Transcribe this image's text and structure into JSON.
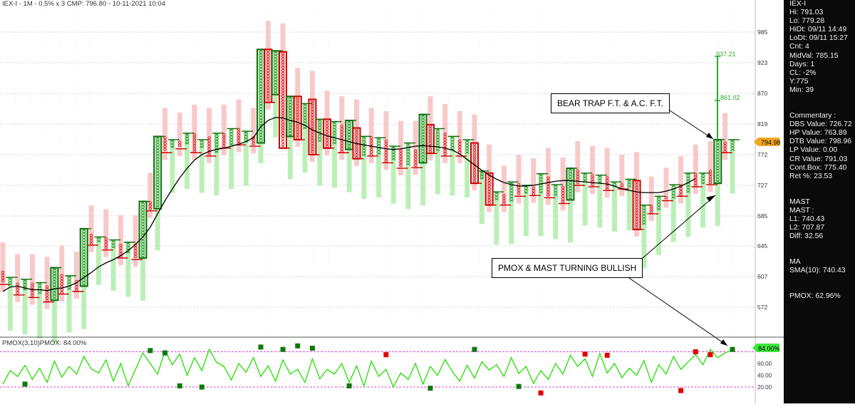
{
  "header": {
    "title": "IEX-I - 1M - 0.5% x 3 CMP: 796.80 - 10-11-2021 10:04"
  },
  "price_axis": {
    "ticks": [
      "985",
      "923",
      "870",
      "819",
      "772",
      "727",
      "685",
      "645",
      "607",
      "572"
    ],
    "current_price": "794.98"
  },
  "pmox_axis": {
    "ticks": [
      "60.00",
      "40.00",
      "20.00"
    ],
    "current": "84.00%"
  },
  "pmox_title": "PMOX(3,10)PMOX: 84.00%",
  "annotations": {
    "upper_target": "937.21",
    "lower_target": "861.02",
    "callout_1": "BEAR TRAP F.T. & A.C. F.T.",
    "callout_2": "PMOX & MAST TURNING BULLISH"
  },
  "side_panel": {
    "block1": [
      "IEX-I",
      "Hi: 791.03",
      "Lo: 779.28",
      "HiDt: 09/11 14:49",
      "LoDt: 09/11 15:27",
      "Cnt: 4",
      "MidVal: 785.15",
      "Days: 1",
      "CL: -2%",
      "Y:775",
      "Min: 39"
    ],
    "block2": [
      "Commentary :",
      "DBS Value:  726.72",
      "HP Value: 763.89",
      "DTB Value: 798.96",
      "LP Value: 0.00",
      "CR Value: 791.03",
      "Cont.Box: 775.40",
      "Ret %: 23.53"
    ],
    "block3": [
      "MAST",
      "MAST :",
      "L1: 740.43",
      "L2: 707.87",
      "Diff: 32.56"
    ],
    "block4": [
      "MA",
      "SMA(10): 740.43"
    ],
    "block5": [
      "PMOX: 62.96%"
    ]
  },
  "colors": {
    "up": "#1e8c1e",
    "down": "#e01010",
    "up_bar": "#b5edb0",
    "down_bar": "#f7c3c3",
    "pmox_line": "#22e000",
    "bg_panel": "#0a0a0a",
    "price_tag": "#f5a623"
  },
  "chart_data": {
    "type": "point-and-figure",
    "title": "IEX-I - 1M - 0.5% x 3 CMP: 796.80 - 10-11-2021 10:04",
    "y_ticks": [
      572,
      607,
      645,
      685,
      727,
      772,
      819,
      870,
      923,
      985
    ],
    "columns": [
      {
        "t": "O",
        "lo": 598,
        "hi": 614
      },
      {
        "t": "X",
        "lo": 594,
        "hi": 606
      },
      {
        "t": "O",
        "lo": 586,
        "hi": 600
      },
      {
        "t": "X",
        "lo": 590,
        "hi": 604
      },
      {
        "t": "O",
        "lo": 583,
        "hi": 600
      },
      {
        "t": "X",
        "lo": 585,
        "hi": 600
      },
      {
        "t": "O",
        "lo": 578,
        "hi": 597
      },
      {
        "t": "X",
        "lo": 580,
        "hi": 618
      },
      {
        "t": "O",
        "lo": 587,
        "hi": 610
      },
      {
        "t": "X",
        "lo": 592,
        "hi": 608
      },
      {
        "t": "O",
        "lo": 590,
        "hi": 603
      },
      {
        "t": "X",
        "lo": 596,
        "hi": 668
      },
      {
        "t": "O",
        "lo": 646,
        "hi": 661
      },
      {
        "t": "X",
        "lo": 650,
        "hi": 657
      },
      {
        "t": "O",
        "lo": 640,
        "hi": 656
      },
      {
        "t": "X",
        "lo": 642,
        "hi": 653
      },
      {
        "t": "O",
        "lo": 630,
        "hi": 648
      },
      {
        "t": "X",
        "lo": 635,
        "hi": 650
      },
      {
        "t": "O",
        "lo": 628,
        "hi": 648
      },
      {
        "t": "X",
        "lo": 630,
        "hi": 705
      },
      {
        "t": "O",
        "lo": 692,
        "hi": 705
      },
      {
        "t": "X",
        "lo": 695,
        "hi": 800
      },
      {
        "t": "O",
        "lo": 775,
        "hi": 800
      },
      {
        "t": "X",
        "lo": 779,
        "hi": 795
      },
      {
        "t": "O",
        "lo": 781,
        "hi": 793
      },
      {
        "t": "X",
        "lo": 785,
        "hi": 805
      },
      {
        "t": "O",
        "lo": 775,
        "hi": 805
      },
      {
        "t": "X",
        "lo": 779,
        "hi": 795
      },
      {
        "t": "O",
        "lo": 770,
        "hi": 800
      },
      {
        "t": "X",
        "lo": 775,
        "hi": 805
      },
      {
        "t": "O",
        "lo": 782,
        "hi": 805
      },
      {
        "t": "X",
        "lo": 785,
        "hi": 812
      },
      {
        "t": "O",
        "lo": 787,
        "hi": 813
      },
      {
        "t": "X",
        "lo": 790,
        "hi": 808
      },
      {
        "t": "O",
        "lo": 785,
        "hi": 800
      },
      {
        "t": "X",
        "lo": 790,
        "hi": 950
      },
      {
        "t": "O",
        "lo": 855,
        "hi": 950
      },
      {
        "t": "X",
        "lo": 868,
        "hi": 947
      },
      {
        "t": "O",
        "lo": 782,
        "hi": 945
      },
      {
        "t": "X",
        "lo": 800,
        "hi": 865
      },
      {
        "t": "O",
        "lo": 795,
        "hi": 865
      },
      {
        "t": "X",
        "lo": 810,
        "hi": 853
      },
      {
        "t": "O",
        "lo": 772,
        "hi": 860
      },
      {
        "t": "X",
        "lo": 790,
        "hi": 827
      },
      {
        "t": "O",
        "lo": 782,
        "hi": 827
      },
      {
        "t": "X",
        "lo": 787,
        "hi": 823
      },
      {
        "t": "O",
        "lo": 775,
        "hi": 818
      },
      {
        "t": "X",
        "lo": 780,
        "hi": 825
      },
      {
        "t": "O",
        "lo": 766,
        "hi": 813
      },
      {
        "t": "X",
        "lo": 770,
        "hi": 800
      },
      {
        "t": "O",
        "lo": 770,
        "hi": 800
      },
      {
        "t": "X",
        "lo": 772,
        "hi": 798
      },
      {
        "t": "O",
        "lo": 760,
        "hi": 795
      },
      {
        "t": "X",
        "lo": 763,
        "hi": 785
      },
      {
        "t": "O",
        "lo": 752,
        "hi": 780
      },
      {
        "t": "X",
        "lo": 755,
        "hi": 790
      },
      {
        "t": "O",
        "lo": 753,
        "hi": 780
      },
      {
        "t": "X",
        "lo": 760,
        "hi": 835
      },
      {
        "t": "O",
        "lo": 774,
        "hi": 818
      },
      {
        "t": "X",
        "lo": 777,
        "hi": 812
      },
      {
        "t": "O",
        "lo": 770,
        "hi": 806
      },
      {
        "t": "X",
        "lo": 775,
        "hi": 800
      },
      {
        "t": "O",
        "lo": 770,
        "hi": 795
      },
      {
        "t": "X",
        "lo": 772,
        "hi": 795
      },
      {
        "t": "O",
        "lo": 730,
        "hi": 790
      },
      {
        "t": "X",
        "lo": 733,
        "hi": 748
      },
      {
        "t": "O",
        "lo": 700,
        "hi": 745
      },
      {
        "t": "X",
        "lo": 704,
        "hi": 718
      },
      {
        "t": "O",
        "lo": 700,
        "hi": 715
      },
      {
        "t": "X",
        "lo": 705,
        "hi": 732
      },
      {
        "t": "O",
        "lo": 712,
        "hi": 730
      },
      {
        "t": "X",
        "lo": 716,
        "hi": 727
      },
      {
        "t": "O",
        "lo": 713,
        "hi": 725
      },
      {
        "t": "X",
        "lo": 716,
        "hi": 744
      },
      {
        "t": "O",
        "lo": 710,
        "hi": 740
      },
      {
        "t": "X",
        "lo": 712,
        "hi": 728
      },
      {
        "t": "O",
        "lo": 702,
        "hi": 726
      },
      {
        "t": "X",
        "lo": 707,
        "hi": 752
      },
      {
        "t": "O",
        "lo": 727,
        "hi": 750
      },
      {
        "t": "X",
        "lo": 731,
        "hi": 745
      },
      {
        "t": "O",
        "lo": 725,
        "hi": 743
      },
      {
        "t": "X",
        "lo": 728,
        "hi": 742
      },
      {
        "t": "O",
        "lo": 720,
        "hi": 740
      },
      {
        "t": "X",
        "lo": 722,
        "hi": 732
      },
      {
        "t": "O",
        "lo": 722,
        "hi": 730
      },
      {
        "t": "X",
        "lo": 724,
        "hi": 736
      },
      {
        "t": "O",
        "lo": 667,
        "hi": 734
      },
      {
        "t": "X",
        "lo": 672,
        "hi": 700
      },
      {
        "t": "O",
        "lo": 688,
        "hi": 700
      },
      {
        "t": "X",
        "lo": 690,
        "hi": 712
      },
      {
        "t": "O",
        "lo": 706,
        "hi": 712
      },
      {
        "t": "X",
        "lo": 708,
        "hi": 728
      },
      {
        "t": "O",
        "lo": 712,
        "hi": 728
      },
      {
        "t": "X",
        "lo": 715,
        "hi": 745
      },
      {
        "t": "O",
        "lo": 725,
        "hi": 745
      },
      {
        "t": "X",
        "lo": 728,
        "hi": 745
      },
      {
        "t": "O",
        "lo": 728,
        "hi": 750
      },
      {
        "t": "X",
        "lo": 730,
        "hi": 795
      },
      {
        "t": "O",
        "lo": 775,
        "hi": 792
      },
      {
        "t": "X",
        "lo": 778,
        "hi": 795
      }
    ],
    "sma10": [
      590,
      595,
      596,
      594,
      592,
      592,
      591,
      593,
      594,
      596,
      600,
      606,
      612,
      619,
      624,
      628,
      633,
      639,
      647,
      657,
      670,
      688,
      706,
      722,
      738,
      752,
      764,
      772,
      777,
      780,
      782,
      785,
      788,
      792,
      798,
      815,
      825,
      830,
      829,
      825,
      822,
      817,
      810,
      805,
      801,
      798,
      795,
      792,
      789,
      787,
      785,
      783,
      781,
      780,
      781,
      783,
      785,
      786,
      785,
      784,
      782,
      779,
      773,
      765,
      757,
      749,
      742,
      736,
      731,
      728,
      726,
      726,
      727,
      729,
      731,
      733,
      734,
      734,
      733,
      732,
      731,
      730,
      729,
      726,
      722,
      720,
      718,
      717,
      717,
      717,
      719,
      722,
      726,
      731,
      737
    ],
    "pmox_series": [
      25,
      48,
      38,
      57,
      33,
      52,
      28,
      64,
      37,
      55,
      42,
      72,
      51,
      44,
      66,
      30,
      60,
      22,
      50,
      78,
      60,
      42,
      82,
      58,
      76,
      40,
      70,
      48,
      84,
      62,
      55,
      32,
      60,
      45,
      70,
      38,
      56,
      30,
      66,
      42,
      50,
      28,
      68,
      34,
      50,
      42,
      60,
      28,
      56,
      22,
      64,
      38,
      50,
      20,
      44,
      33,
      60,
      25,
      55,
      40,
      67,
      46,
      30,
      57,
      35,
      63,
      49,
      58,
      38,
      70,
      43,
      55,
      26,
      48,
      33,
      60,
      42,
      74,
      55,
      68,
      38,
      77,
      44,
      60,
      36,
      52,
      40,
      65,
      28,
      58,
      42,
      72,
      50,
      63,
      75,
      58,
      84,
      70,
      78,
      84
    ],
    "pmox_markers": [
      {
        "i": 3,
        "v": 25,
        "c": "g"
      },
      {
        "i": 20,
        "v": 82,
        "c": "g"
      },
      {
        "i": 22,
        "v": 78,
        "c": "g"
      },
      {
        "i": 24,
        "v": 22,
        "c": "g"
      },
      {
        "i": 27,
        "v": 20,
        "c": "g"
      },
      {
        "i": 35,
        "v": 88,
        "c": "g"
      },
      {
        "i": 38,
        "v": 84,
        "c": "g"
      },
      {
        "i": 40,
        "v": 90,
        "c": "g"
      },
      {
        "i": 42,
        "v": 86,
        "c": "g"
      },
      {
        "i": 47,
        "v": 22,
        "c": "g"
      },
      {
        "i": 52,
        "v": 75,
        "c": "r"
      },
      {
        "i": 58,
        "v": 18,
        "c": "g"
      },
      {
        "i": 64,
        "v": 84,
        "c": "g"
      },
      {
        "i": 70,
        "v": 21,
        "c": "g"
      },
      {
        "i": 73,
        "v": 10,
        "c": "r"
      },
      {
        "i": 79,
        "v": 76,
        "c": "r"
      },
      {
        "i": 82,
        "v": 74,
        "c": "r"
      },
      {
        "i": 92,
        "v": 14,
        "c": "r"
      },
      {
        "i": 94,
        "v": 80,
        "c": "r"
      },
      {
        "i": 96,
        "v": 75,
        "c": "r"
      },
      {
        "i": 99,
        "v": 84,
        "c": "g"
      }
    ]
  }
}
